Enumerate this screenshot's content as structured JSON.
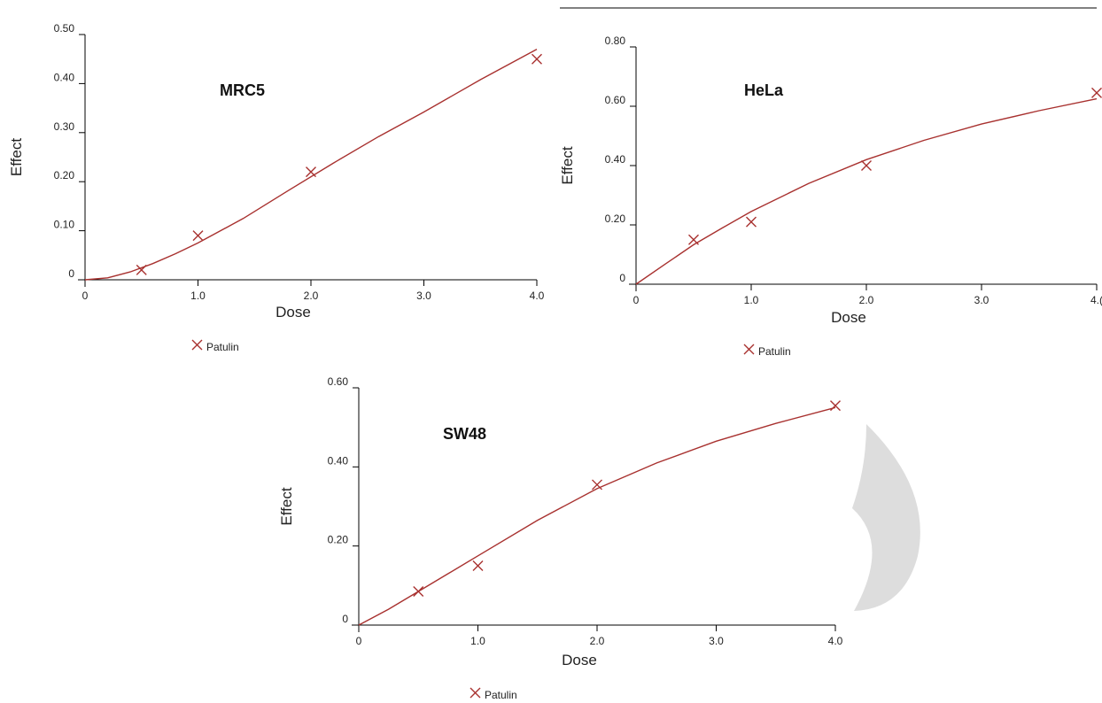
{
  "chart_data": [
    {
      "type": "scatter",
      "title": "MRC5",
      "xlabel": "Dose",
      "ylabel": "Effect",
      "xlim": [
        0,
        4.0
      ],
      "ylim": [
        0,
        0.5
      ],
      "x_ticks": [
        "0",
        "1.0",
        "2.0",
        "3.0",
        "4.0"
      ],
      "y_ticks": [
        "0",
        "0.10",
        "0.20",
        "0.30",
        "0.40",
        "0.50"
      ],
      "legend": "Patulin",
      "series": [
        {
          "name": "Patulin",
          "x": [
            0.5,
            1.0,
            2.0,
            4.0
          ],
          "y": [
            0.02,
            0.09,
            0.22,
            0.45
          ],
          "curve_x": [
            0,
            0.2,
            0.4,
            0.6,
            0.8,
            1.0,
            1.4,
            1.8,
            2.2,
            2.6,
            3.0,
            3.5,
            4.0
          ],
          "curve_y": [
            0,
            0.004,
            0.016,
            0.033,
            0.053,
            0.075,
            0.125,
            0.182,
            0.238,
            0.292,
            0.342,
            0.408,
            0.47
          ]
        }
      ],
      "grid": false,
      "legend_position": "bottom-center"
    },
    {
      "type": "scatter",
      "title": "HeLa",
      "xlabel": "Dose",
      "ylabel": "Effect",
      "xlim": [
        0,
        4.0
      ],
      "ylim": [
        0,
        0.8
      ],
      "x_ticks": [
        "0",
        "1.0",
        "2.0",
        "3.0",
        "4.("
      ],
      "y_ticks": [
        "0",
        "0.20",
        "0.40",
        "0.60",
        "0.80"
      ],
      "legend": "Patulin",
      "series": [
        {
          "name": "Patulin",
          "x": [
            0.5,
            1.0,
            2.0,
            4.0
          ],
          "y": [
            0.15,
            0.21,
            0.4,
            0.645
          ],
          "curve_x": [
            0,
            0.25,
            0.5,
            0.75,
            1.0,
            1.5,
            2.0,
            2.5,
            3.0,
            3.5,
            4.0
          ],
          "curve_y": [
            0,
            0.067,
            0.133,
            0.19,
            0.245,
            0.34,
            0.42,
            0.485,
            0.54,
            0.585,
            0.625
          ]
        }
      ],
      "grid": false,
      "legend_position": "bottom-center"
    },
    {
      "type": "scatter",
      "title": "SW48",
      "xlabel": "Dose",
      "ylabel": "Effect",
      "xlim": [
        0,
        4.0
      ],
      "ylim": [
        0,
        0.6
      ],
      "x_ticks": [
        "0",
        "1.0",
        "2.0",
        "3.0",
        "4.0"
      ],
      "y_ticks": [
        "0",
        "0.20",
        "0.40",
        "0.60"
      ],
      "legend": "Patulin",
      "series": [
        {
          "name": "Patulin",
          "x": [
            0.5,
            1.0,
            2.0,
            4.0
          ],
          "y": [
            0.085,
            0.15,
            0.355,
            0.555
          ],
          "curve_x": [
            0,
            0.25,
            0.5,
            0.75,
            1.0,
            1.5,
            2.0,
            2.5,
            3.0,
            3.5,
            4.0
          ],
          "curve_y": [
            0,
            0.04,
            0.085,
            0.13,
            0.175,
            0.265,
            0.345,
            0.41,
            0.465,
            0.51,
            0.55
          ]
        }
      ],
      "grid": false,
      "legend_position": "bottom-center"
    }
  ],
  "colors": {
    "series": "#a8312f",
    "axis": "#000000",
    "watermark": "#dddddd"
  }
}
